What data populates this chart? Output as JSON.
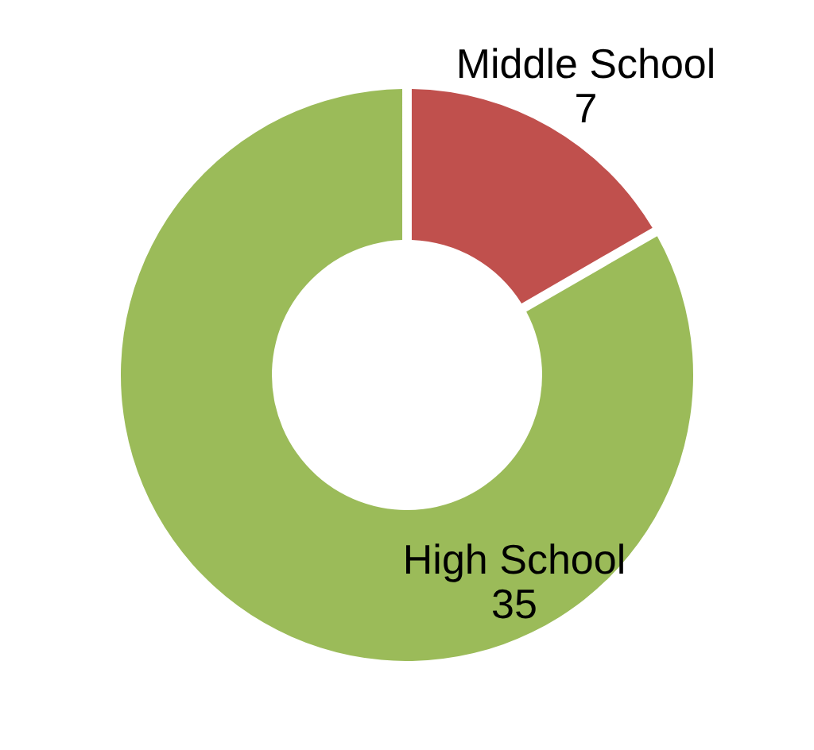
{
  "chart_data": {
    "type": "donut",
    "categories": [
      "Middle School",
      "High School"
    ],
    "values": [
      7,
      35
    ],
    "colors": [
      "#c0504d",
      "#9bbb59"
    ],
    "data_labels": true,
    "legend": false
  }
}
